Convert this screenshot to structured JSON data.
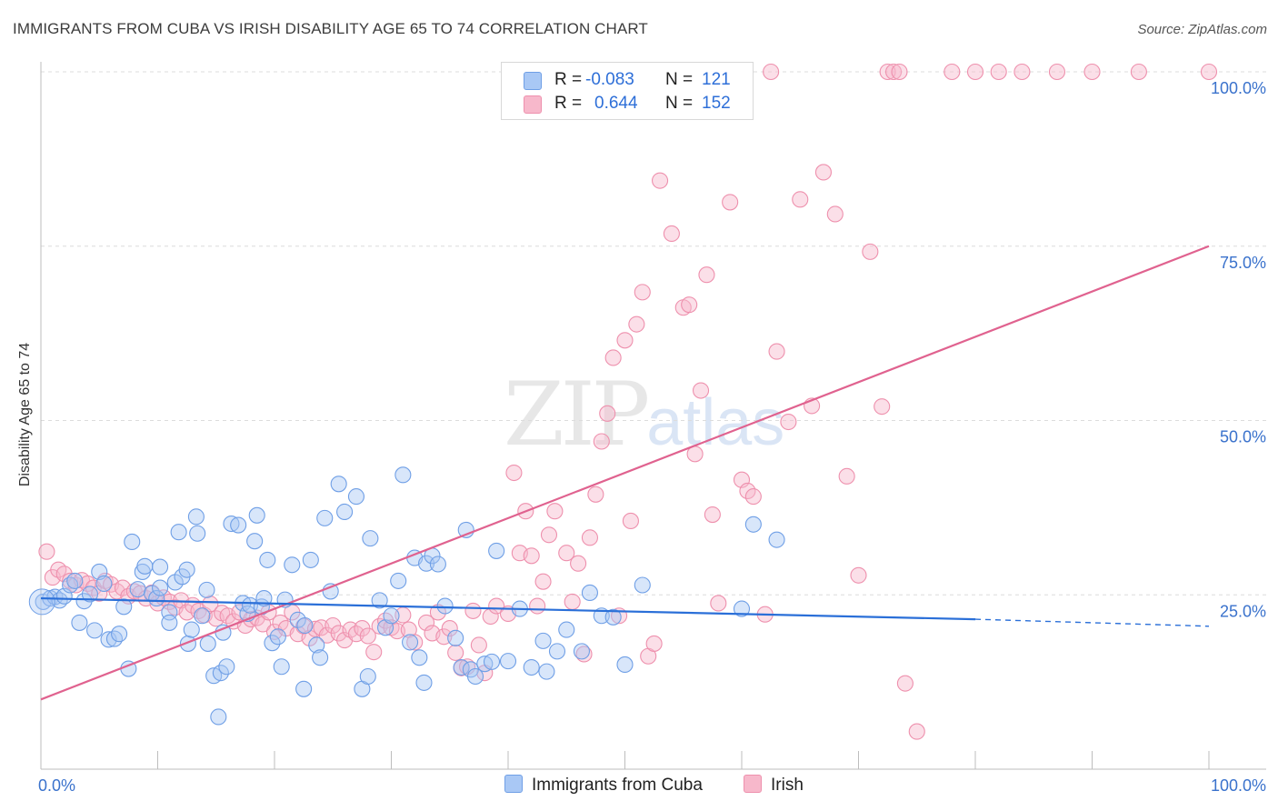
{
  "header": {
    "title": "IMMIGRANTS FROM CUBA VS IRISH DISABILITY AGE 65 TO 74 CORRELATION CHART",
    "source": "Source: ZipAtlas.com"
  },
  "watermark": {
    "zip": "ZIP",
    "atlas": "atlas"
  },
  "legend": {
    "rows": [
      {
        "r_label": "R =",
        "r_value": "-0.083",
        "n_label": "N =",
        "n_value": "121",
        "color": "#a9c8f5"
      },
      {
        "r_label": "R =",
        "r_value": "0.644",
        "n_label": "N =",
        "n_value": "152",
        "color": "#f7b8cb"
      }
    ]
  },
  "bottom_legend": [
    {
      "label": "Immigrants from Cuba",
      "color": "#a9c8f5"
    },
    {
      "label": "Irish",
      "color": "#f7b8cb"
    }
  ],
  "colors": {
    "blue_fill": "#a9c8f5",
    "blue_stroke": "#6f9fe6",
    "blue_line": "#2a6fd8",
    "pink_fill": "#f7b8cb",
    "pink_stroke": "#ee90ad",
    "pink_line": "#e0628f",
    "tick_label": "#3a72cc"
  },
  "chart_data": {
    "type": "scatter",
    "ylabel": "Disability Age 65 to 74",
    "x_ticks": [
      "0.0%",
      "100.0%"
    ],
    "y_ticks": [
      {
        "value": 25,
        "label": "25.0%"
      },
      {
        "value": 50,
        "label": "50.0%"
      },
      {
        "value": 75,
        "label": "75.0%"
      },
      {
        "value": 100,
        "label": "100.0%"
      }
    ],
    "xlim": [
      0,
      100
    ],
    "ylim": [
      0,
      100
    ],
    "grid": "horizontal dashed",
    "series": [
      {
        "name": "Immigrants from Cuba",
        "trend": {
          "x0": 0,
          "y0": 24.5,
          "x1": 80,
          "y1": 21.5,
          "dashed_to_x": 100,
          "dashed_y1": 20.5
        },
        "points": [
          [
            0.2,
            24
          ],
          [
            0.8,
            24.5
          ],
          [
            1.2,
            24.7
          ],
          [
            1.6,
            24.2
          ],
          [
            2,
            24.8
          ],
          [
            2.5,
            26.4
          ],
          [
            2.9,
            27
          ],
          [
            3.3,
            21
          ],
          [
            3.7,
            24.1
          ],
          [
            4.2,
            25.1
          ],
          [
            4.6,
            19.9
          ],
          [
            5,
            28.3
          ],
          [
            5.4,
            26.6
          ],
          [
            5.8,
            18.6
          ],
          [
            6.3,
            18.7
          ],
          [
            6.7,
            19.4
          ],
          [
            7.1,
            23.3
          ],
          [
            7.5,
            14.4
          ],
          [
            7.8,
            32.6
          ],
          [
            8.3,
            25.8
          ],
          [
            8.7,
            28.3
          ],
          [
            8.9,
            29.1
          ],
          [
            9.5,
            25.2
          ],
          [
            9.9,
            24.5
          ],
          [
            10.2,
            29
          ],
          [
            10.2,
            26
          ],
          [
            11,
            22.5
          ],
          [
            11,
            21
          ],
          [
            11.5,
            26.8
          ],
          [
            11.8,
            34
          ],
          [
            12.1,
            27.6
          ],
          [
            12.5,
            28.6
          ],
          [
            12.6,
            18
          ],
          [
            12.9,
            20
          ],
          [
            13.3,
            36.2
          ],
          [
            13.4,
            33.8
          ],
          [
            13.8,
            22
          ],
          [
            14.2,
            25.7
          ],
          [
            14.3,
            18
          ],
          [
            14.8,
            13.4
          ],
          [
            15.2,
            7.5
          ],
          [
            15.4,
            13.8
          ],
          [
            15.6,
            19.6
          ],
          [
            15.9,
            14.7
          ],
          [
            16.3,
            35.2
          ],
          [
            16.9,
            35
          ],
          [
            17.3,
            23.8
          ],
          [
            17.7,
            22.3
          ],
          [
            17.9,
            23.5
          ],
          [
            18.3,
            32.7
          ],
          [
            18.5,
            36.4
          ],
          [
            18.9,
            23.3
          ],
          [
            19.1,
            24.5
          ],
          [
            19.4,
            30
          ],
          [
            19.8,
            18.1
          ],
          [
            20.3,
            19
          ],
          [
            20.6,
            14.7
          ],
          [
            20.9,
            24.3
          ],
          [
            21.5,
            29.3
          ],
          [
            22,
            21.4
          ],
          [
            22.5,
            11.5
          ],
          [
            22.6,
            20.6
          ],
          [
            23.1,
            30
          ],
          [
            23.6,
            17.8
          ],
          [
            23.9,
            16
          ],
          [
            24.3,
            36
          ],
          [
            24.8,
            25.5
          ],
          [
            25.5,
            40.9
          ],
          [
            26,
            36.9
          ],
          [
            27,
            39.1
          ],
          [
            27.5,
            11.5
          ],
          [
            28,
            13.3
          ],
          [
            28.2,
            33.1
          ],
          [
            29,
            24.2
          ],
          [
            29.5,
            20.3
          ],
          [
            30,
            22
          ],
          [
            30.6,
            27
          ],
          [
            31,
            42.2
          ],
          [
            31.6,
            18.2
          ],
          [
            32,
            30.3
          ],
          [
            32.4,
            16
          ],
          [
            32.8,
            12.4
          ],
          [
            33,
            29.5
          ],
          [
            33.5,
            30.6
          ],
          [
            34,
            29.4
          ],
          [
            34.6,
            23.4
          ],
          [
            35.5,
            18.8
          ],
          [
            36,
            14.6
          ],
          [
            36.4,
            34.3
          ],
          [
            36.8,
            14.3
          ],
          [
            37.2,
            13.3
          ],
          [
            38,
            15.1
          ],
          [
            38.6,
            15.4
          ],
          [
            39,
            31.3
          ],
          [
            40,
            15.5
          ],
          [
            41,
            23
          ],
          [
            42,
            14.6
          ],
          [
            43,
            18.4
          ],
          [
            43.3,
            14
          ],
          [
            44.2,
            16.9
          ],
          [
            45,
            20
          ],
          [
            46.3,
            16.9
          ],
          [
            47,
            25.3
          ],
          [
            48,
            22
          ],
          [
            49,
            21.8
          ],
          [
            50,
            15
          ],
          [
            51.5,
            26.4
          ],
          [
            60,
            23
          ],
          [
            61,
            35.1
          ],
          [
            63,
            32.9
          ]
        ]
      },
      {
        "name": "Irish",
        "trend": {
          "x0": 0,
          "y0": 10,
          "x1": 100,
          "y1": 75
        },
        "points": [
          [
            0.5,
            31.2
          ],
          [
            1,
            27.5
          ],
          [
            1.5,
            28.6
          ],
          [
            2,
            28
          ],
          [
            2.5,
            27
          ],
          [
            3,
            26.4
          ],
          [
            3.5,
            27.1
          ],
          [
            4,
            26.6
          ],
          [
            4.5,
            26
          ],
          [
            5,
            25.2
          ],
          [
            5.5,
            27
          ],
          [
            6,
            26.5
          ],
          [
            6.5,
            25.5
          ],
          [
            7,
            26
          ],
          [
            7.5,
            24.8
          ],
          [
            8,
            25.5
          ],
          [
            8.5,
            25.2
          ],
          [
            9,
            24.5
          ],
          [
            9.5,
            25.3
          ],
          [
            10,
            23.8
          ],
          [
            10.5,
            24.6
          ],
          [
            11,
            24
          ],
          [
            11.5,
            23.2
          ],
          [
            12,
            24.2
          ],
          [
            12.5,
            22.5
          ],
          [
            13,
            23.5
          ],
          [
            13.5,
            22.7
          ],
          [
            14,
            22.1
          ],
          [
            14.5,
            23.7
          ],
          [
            15,
            21.6
          ],
          [
            15.5,
            22.4
          ],
          [
            16,
            22
          ],
          [
            16.5,
            21.2
          ],
          [
            17,
            22.5
          ],
          [
            17.5,
            20.6
          ],
          [
            18,
            21.5
          ],
          [
            18.5,
            21.7
          ],
          [
            19,
            20.8
          ],
          [
            19.5,
            22.5
          ],
          [
            20,
            19.7
          ],
          [
            20.5,
            21
          ],
          [
            21,
            20.2
          ],
          [
            21.5,
            22.5
          ],
          [
            22,
            19.4
          ],
          [
            22.5,
            20.5
          ],
          [
            23,
            18.8
          ],
          [
            23.5,
            20.1
          ],
          [
            24,
            20.3
          ],
          [
            24.5,
            19.2
          ],
          [
            25,
            20.6
          ],
          [
            25.5,
            19.5
          ],
          [
            26,
            18.5
          ],
          [
            26.5,
            20
          ],
          [
            27,
            19.4
          ],
          [
            27.5,
            20.2
          ],
          [
            28,
            19.1
          ],
          [
            28.5,
            16.8
          ],
          [
            29,
            20.5
          ],
          [
            29.5,
            21.3
          ],
          [
            30,
            20.3
          ],
          [
            30.5,
            19.8
          ],
          [
            31,
            22.1
          ],
          [
            31.5,
            20
          ],
          [
            32,
            18.2
          ],
          [
            33,
            21
          ],
          [
            33.5,
            19.5
          ],
          [
            34,
            22.5
          ],
          [
            34.5,
            19
          ],
          [
            35,
            20.2
          ],
          [
            35.5,
            16.7
          ],
          [
            36,
            14.5
          ],
          [
            36.5,
            14.7
          ],
          [
            37,
            22.7
          ],
          [
            37.5,
            17.8
          ],
          [
            38,
            13.8
          ],
          [
            38.5,
            21.9
          ],
          [
            39,
            23.4
          ],
          [
            40,
            22.3
          ],
          [
            40.5,
            42.5
          ],
          [
            41,
            31
          ],
          [
            41.5,
            37
          ],
          [
            42,
            30.6
          ],
          [
            42.5,
            23.4
          ],
          [
            43,
            26.9
          ],
          [
            43.5,
            33.6
          ],
          [
            44,
            37
          ],
          [
            45,
            31
          ],
          [
            45.5,
            24
          ],
          [
            46,
            29.5
          ],
          [
            46.5,
            16.5
          ],
          [
            47,
            33.2
          ],
          [
            47.5,
            39.4
          ],
          [
            48,
            47
          ],
          [
            48.5,
            51
          ],
          [
            49,
            59
          ],
          [
            49.5,
            22
          ],
          [
            50,
            61.5
          ],
          [
            50.5,
            35.6
          ],
          [
            51,
            63.8
          ],
          [
            51.5,
            68.4
          ],
          [
            52,
            16.2
          ],
          [
            52.5,
            18
          ],
          [
            53,
            84.4
          ],
          [
            54,
            76.8
          ],
          [
            55,
            66.2
          ],
          [
            55.5,
            66.6
          ],
          [
            56,
            45.2
          ],
          [
            56.5,
            54.3
          ],
          [
            57,
            70.9
          ],
          [
            57.5,
            36.5
          ],
          [
            58,
            23.8
          ],
          [
            59,
            81.3
          ],
          [
            60,
            41.5
          ],
          [
            60.5,
            39.9
          ],
          [
            61,
            39.1
          ],
          [
            62,
            22.2
          ],
          [
            63,
            59.9
          ],
          [
            64,
            49.8
          ],
          [
            65,
            81.7
          ],
          [
            66,
            52.1
          ],
          [
            67,
            85.6
          ],
          [
            68,
            79.6
          ],
          [
            69,
            42
          ],
          [
            70,
            27.8
          ],
          [
            71,
            74.2
          ],
          [
            72,
            52
          ],
          [
            74,
            12.3
          ],
          [
            75,
            5.4
          ],
          [
            78,
            100
          ],
          [
            80,
            100
          ],
          [
            82,
            100
          ],
          [
            84,
            100
          ],
          [
            87,
            100
          ],
          [
            90,
            100
          ],
          [
            94,
            100
          ],
          [
            100,
            100
          ],
          [
            72.5,
            100
          ],
          [
            73,
            100
          ],
          [
            73.5,
            100
          ],
          [
            62.5,
            100
          ]
        ]
      }
    ]
  }
}
